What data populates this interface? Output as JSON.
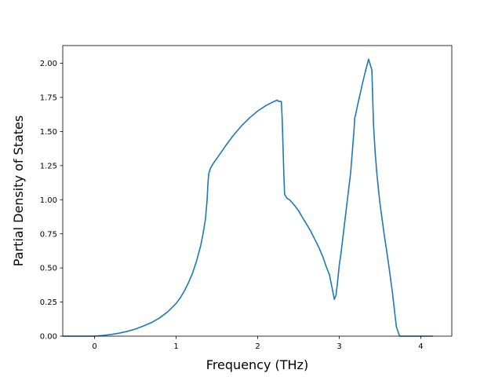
{
  "chart_data": {
    "type": "line",
    "title": "",
    "xlabel": "Frequency (THz)",
    "ylabel": "Partial Density of States",
    "xlim": [
      -0.39,
      4.38
    ],
    "ylim": [
      0.0,
      2.13
    ],
    "xticks": [
      0,
      1,
      2,
      3,
      4
    ],
    "xtick_labels": [
      "0",
      "1",
      "2",
      "3",
      "4"
    ],
    "yticks": [
      0.0,
      0.25,
      0.5,
      0.75,
      1.0,
      1.25,
      1.5,
      1.75,
      2.0
    ],
    "ytick_labels": [
      "0.00",
      "0.25",
      "0.50",
      "0.75",
      "1.00",
      "1.25",
      "1.50",
      "1.75",
      "2.00"
    ],
    "grid": false,
    "legend": "none",
    "series": [
      {
        "color": "#1f77b4",
        "x": [
          -0.38,
          0.0,
          0.1,
          0.2,
          0.3,
          0.4,
          0.5,
          0.6,
          0.7,
          0.8,
          0.9,
          1.0,
          1.05,
          1.1,
          1.15,
          1.2,
          1.25,
          1.3,
          1.33,
          1.36,
          1.38,
          1.39,
          1.4,
          1.42,
          1.46,
          1.52,
          1.6,
          1.7,
          1.8,
          1.9,
          2.0,
          2.1,
          2.2,
          2.24,
          2.26,
          2.29,
          2.3,
          2.31,
          2.32,
          2.33,
          2.36,
          2.39,
          2.45,
          2.5,
          2.55,
          2.6,
          2.65,
          2.7,
          2.75,
          2.8,
          2.84,
          2.88,
          2.92,
          2.94,
          2.96,
          2.98,
          3.0,
          3.02,
          3.04,
          3.06,
          3.1,
          3.14,
          3.18,
          3.19,
          3.2,
          3.22,
          3.25,
          3.28,
          3.32,
          3.36,
          3.4,
          3.42,
          3.44,
          3.46,
          3.48,
          3.5,
          3.55,
          3.6,
          3.65,
          3.7,
          3.74,
          3.76,
          3.78,
          3.8,
          4.0,
          4.14
        ],
        "y": [
          0.0,
          0.0,
          0.005,
          0.012,
          0.022,
          0.035,
          0.052,
          0.075,
          0.1,
          0.135,
          0.18,
          0.24,
          0.28,
          0.33,
          0.39,
          0.46,
          0.55,
          0.66,
          0.75,
          0.86,
          1.0,
          1.12,
          1.19,
          1.23,
          1.27,
          1.32,
          1.39,
          1.47,
          1.54,
          1.6,
          1.65,
          1.69,
          1.72,
          1.73,
          1.72,
          1.72,
          1.6,
          1.4,
          1.2,
          1.04,
          1.01,
          1.0,
          0.96,
          0.92,
          0.87,
          0.82,
          0.77,
          0.71,
          0.65,
          0.58,
          0.51,
          0.45,
          0.33,
          0.27,
          0.3,
          0.4,
          0.52,
          0.6,
          0.7,
          0.8,
          1.0,
          1.2,
          1.5,
          1.6,
          1.62,
          1.68,
          1.76,
          1.84,
          1.94,
          2.03,
          1.95,
          1.55,
          1.35,
          1.2,
          1.08,
          0.97,
          0.75,
          0.55,
          0.33,
          0.07,
          0.0,
          0.0,
          0.0,
          0.0,
          0.0,
          0.0
        ]
      }
    ]
  }
}
